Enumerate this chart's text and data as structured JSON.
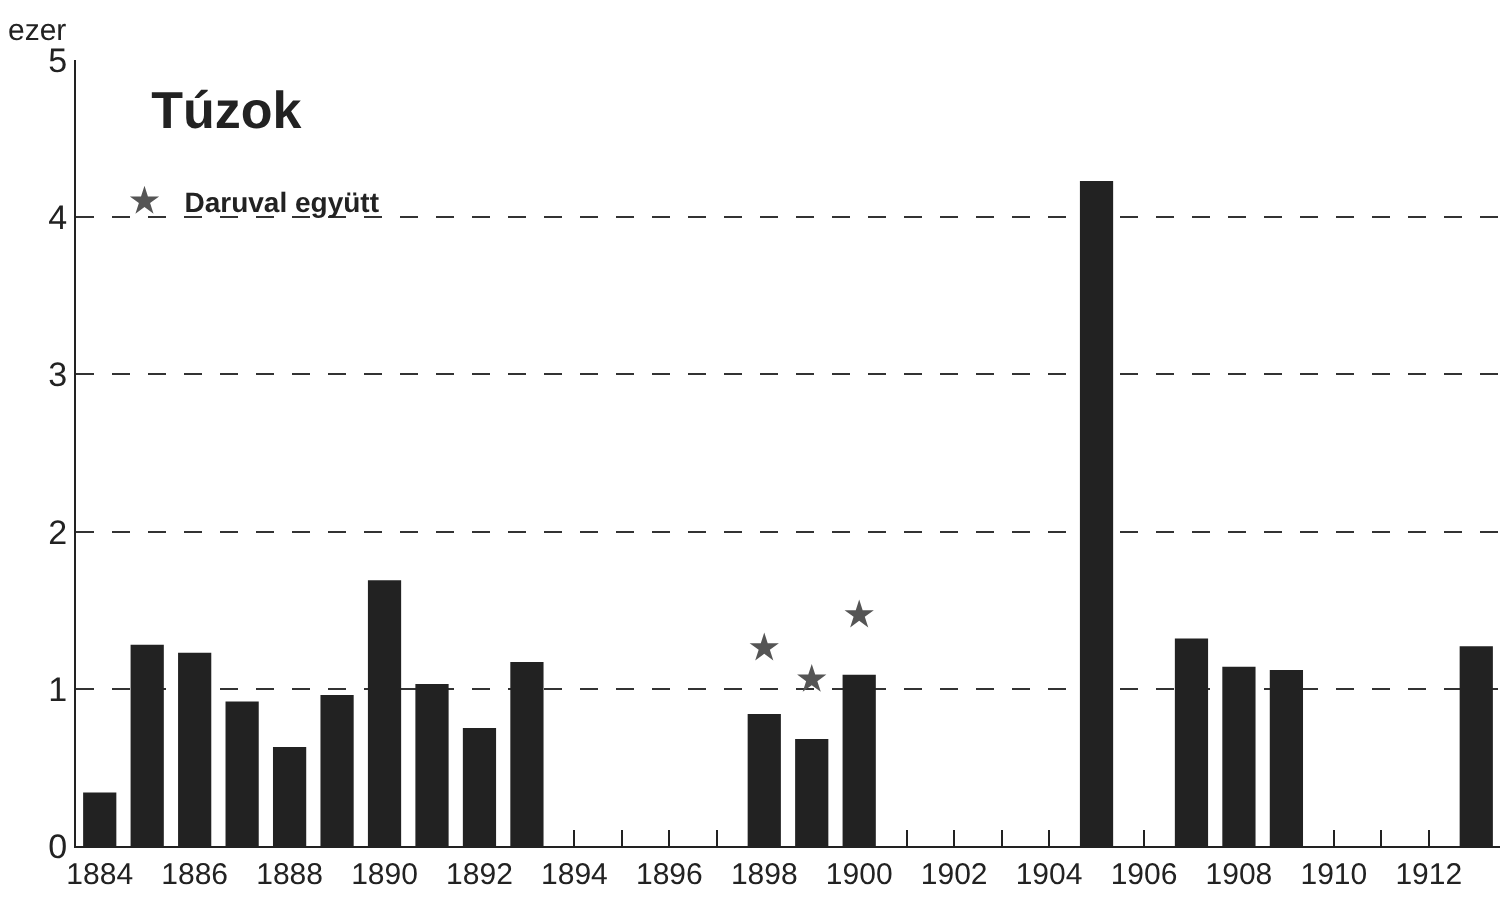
{
  "chart_data": {
    "type": "bar",
    "title": "Túzok",
    "ylabel": "ezer",
    "x": [
      1884,
      1885,
      1886,
      1887,
      1888,
      1889,
      1890,
      1891,
      1892,
      1893,
      1894,
      1895,
      1896,
      1897,
      1898,
      1899,
      1900,
      1901,
      1902,
      1903,
      1904,
      1905,
      1906,
      1907,
      1908,
      1909,
      1910,
      1911,
      1912,
      1913
    ],
    "series": [
      {
        "color": "#222222",
        "values": [
          0.34,
          1.28,
          1.23,
          0.92,
          0.63,
          0.96,
          1.69,
          1.03,
          0.75,
          1.17,
          null,
          null,
          null,
          null,
          0.84,
          0.68,
          1.09,
          null,
          null,
          null,
          null,
          4.23,
          null,
          1.32,
          1.14,
          1.12,
          null,
          null,
          null,
          1.27
        ]
      },
      {
        "type": "scatter",
        "name": "Daruval együtt",
        "color": "#555555",
        "marker": "star",
        "x": [
          1898,
          1899,
          1900
        ],
        "values": [
          1.26,
          1.06,
          1.47
        ]
      }
    ],
    "xlim": [
      1883.5,
      1913.5
    ],
    "xticks": [
      1884,
      {
        "value": 1885,
        "label": null
      },
      1886,
      {
        "value": 1887,
        "label": null
      },
      1888,
      {
        "value": 1889,
        "label": null
      },
      1890,
      {
        "value": 1891,
        "label": null
      },
      1892,
      {
        "value": 1893,
        "label": null
      },
      1894,
      {
        "value": 1895,
        "label": null
      },
      1896,
      {
        "value": 1897,
        "label": null
      },
      1898,
      {
        "value": 1899,
        "label": null
      },
      1900,
      {
        "value": 1901,
        "label": null
      },
      1902,
      {
        "value": 1903,
        "label": null
      },
      1904,
      {
        "value": 1905,
        "label": null
      },
      1906,
      {
        "value": 1907,
        "label": null
      },
      1908,
      {
        "value": 1909,
        "label": null
      },
      1910,
      {
        "value": 1911,
        "label": null
      },
      1912,
      {
        "value": 1913,
        "label": null
      }
    ],
    "ylim": [
      0,
      5
    ],
    "yticks": [
      0,
      1,
      2,
      3,
      4,
      5
    ],
    "grid": "y",
    "legend": "top left"
  }
}
